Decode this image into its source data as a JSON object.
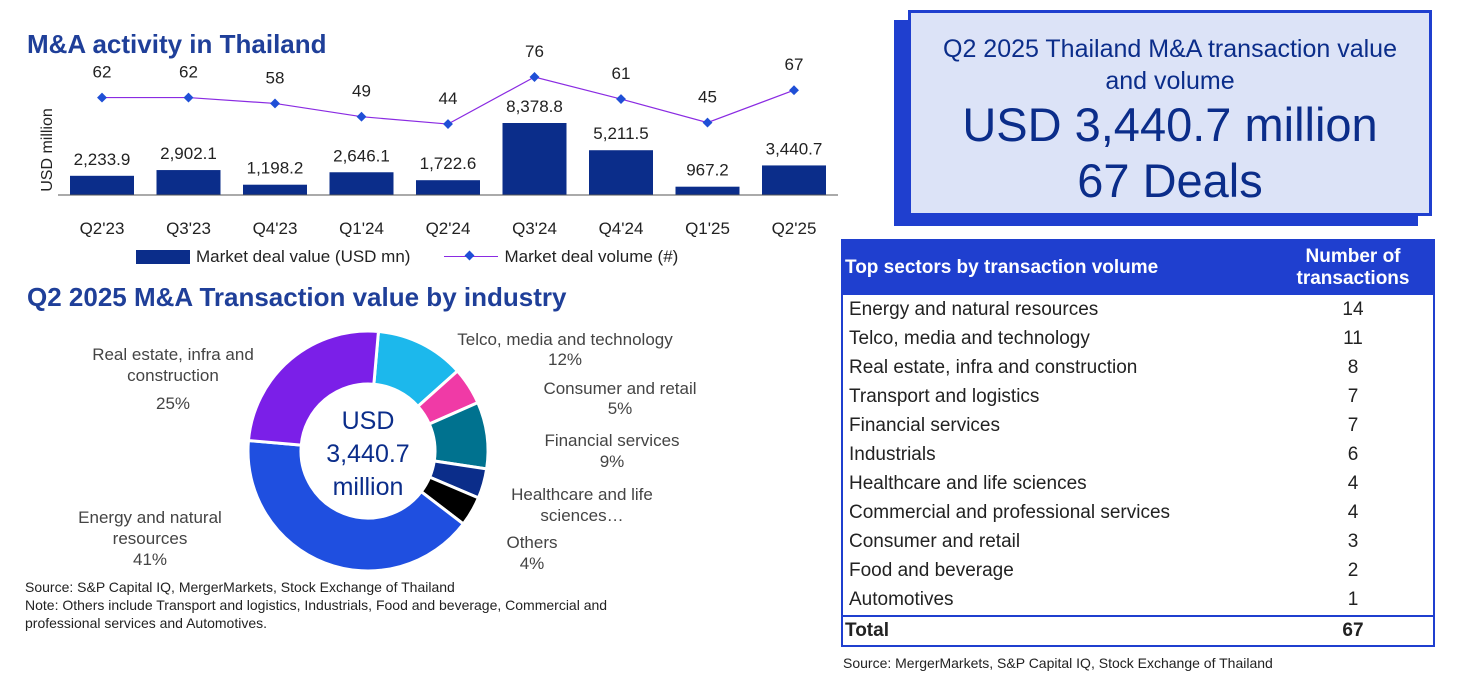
{
  "left": {
    "activity_title": "M&A activity in Thailand",
    "industry_title": "Q2 2025 M&A Transaction value by industry",
    "source": "Source: S&P Capital IQ, MergerMarkets, Stock Exchange of Thailand",
    "note_line1": "Note: Others include Transport and logistics, Industrials, Food and beverage, Commercial and",
    "note_line2": "professional services and Automotives."
  },
  "kpi": {
    "subtitle": "Q2 2025 Thailand M&A transaction value and volume",
    "value": "USD 3,440.7 million",
    "deals": "67 Deals"
  },
  "table": {
    "header_sector": "Top sectors by transaction volume",
    "header_count": "Number of transactions",
    "rows": [
      {
        "sector": "Energy and natural resources",
        "count": "14"
      },
      {
        "sector": "Telco, media and technology",
        "count": "11"
      },
      {
        "sector": "Real estate, infra and construction",
        "count": "8"
      },
      {
        "sector": "Transport and logistics",
        "count": "7"
      },
      {
        "sector": "Financial services",
        "count": "7"
      },
      {
        "sector": "Industrials",
        "count": "6"
      },
      {
        "sector": "Healthcare and life sciences",
        "count": "4"
      },
      {
        "sector": "Commercial and professional services",
        "count": "4"
      },
      {
        "sector": "Consumer and retail",
        "count": "3"
      },
      {
        "sector": "Food and beverage",
        "count": "2"
      },
      {
        "sector": "Automotives",
        "count": "1"
      }
    ],
    "total_label": "Total",
    "total_value": "67",
    "source": "Source: MergerMarkets, S&P Capital IQ, Stock Exchange of Thailand"
  },
  "chart_data": [
    {
      "type": "bar",
      "title": "M&A activity in Thailand",
      "ylabel": "USD million",
      "categories": [
        "Q2'23",
        "Q3'23",
        "Q4'23",
        "Q1'24",
        "Q2'24",
        "Q3'24",
        "Q4'24",
        "Q1'25",
        "Q2'25"
      ],
      "series": [
        {
          "name": "Market deal value (USD mn)",
          "type": "bar",
          "values": [
            2233.9,
            2902.1,
            1198.2,
            2646.1,
            1722.6,
            8378.8,
            5211.5,
            967.2,
            3440.7
          ],
          "labels": [
            "2,233.9",
            "2,902.1",
            "1,198.2",
            "2,646.1",
            "1,722.6",
            "8,378.8",
            "5,211.5",
            "967.2",
            "3,440.7"
          ],
          "color": "#0b2d8a"
        },
        {
          "name": "Market deal volume (#)",
          "type": "line",
          "values": [
            62,
            62,
            58,
            49,
            44,
            76,
            61,
            45,
            67
          ],
          "labels": [
            "62",
            "62",
            "58",
            "49",
            "44",
            "76",
            "61",
            "45",
            "67"
          ],
          "color": "#8a2be2",
          "marker_color": "#1f4fd6"
        }
      ],
      "legend": "bottom"
    },
    {
      "type": "pie",
      "title": "Q2 2025 M&A Transaction value by industry",
      "center_label": [
        "USD",
        "3,440.7",
        "million"
      ],
      "slices": [
        {
          "name": "Telco, media and technology",
          "pct": "12%",
          "value": 12,
          "color": "#1cb8ec"
        },
        {
          "name": "Consumer and retail",
          "pct": "5%",
          "value": 5,
          "color": "#f03aa6"
        },
        {
          "name": "Financial services",
          "pct": "9%",
          "value": 9,
          "color": "#00728f"
        },
        {
          "name": "Healthcare and life sciences…",
          "pct": "",
          "value": 4,
          "color": "#0b2d8a"
        },
        {
          "name": "Others",
          "pct": "4%",
          "value": 4,
          "color": "#000000"
        },
        {
          "name": "Energy and natural resources",
          "pct": "41%",
          "value": 41,
          "color": "#1f4fe0"
        },
        {
          "name": "Real estate, infra and construction",
          "pct": "25%",
          "value": 25,
          "color": "#7b1fe8"
        }
      ]
    }
  ]
}
